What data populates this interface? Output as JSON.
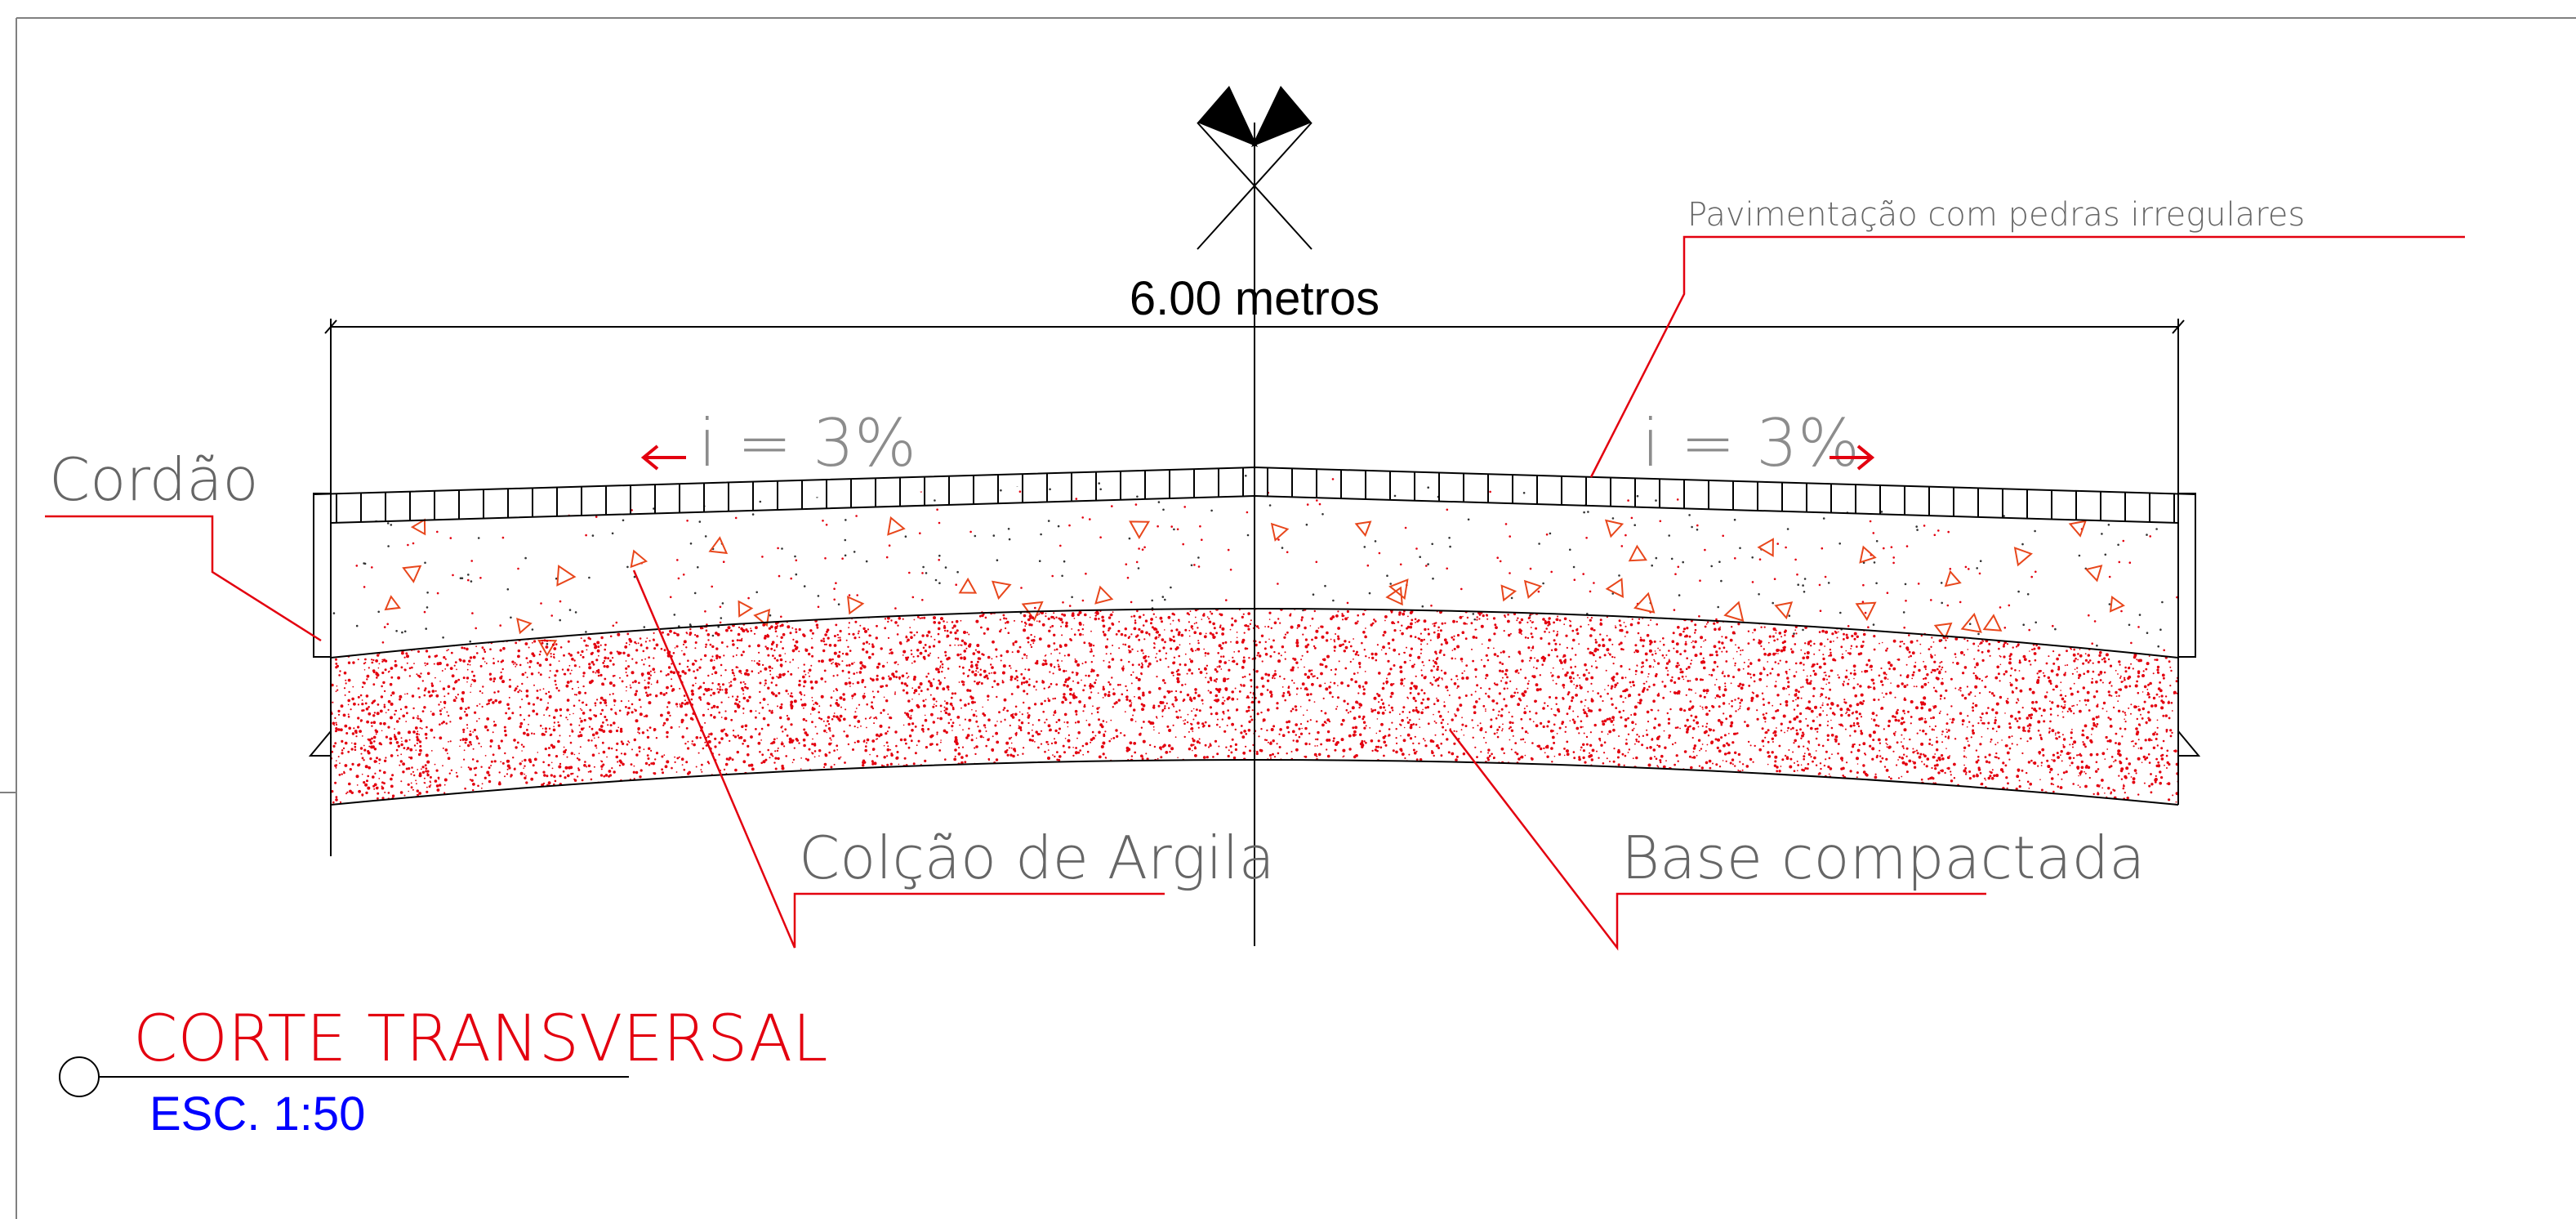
{
  "dimension": {
    "label": "6.00 metros"
  },
  "slope": {
    "left_label": "i = 3%",
    "right_label": "i = 3%"
  },
  "labels": {
    "pavement": "Pavimentação com pedras irregulares",
    "curb": "Cordão",
    "clay_cushion": "Colção de Argila",
    "compacted_base": "Base compactada"
  },
  "title": {
    "name": "CORTE TRANSVERSAL",
    "scale": "ESC. 1:50"
  },
  "colors": {
    "line": "#000000",
    "leader": "#e3000f",
    "hatch": "#e3000f",
    "aggregate": "#e8461b",
    "title": "#e3000f",
    "scale": "#0000ff"
  },
  "icons": {
    "section_marker": "section-flags-icon",
    "title_marker": "circle-marker-icon"
  }
}
